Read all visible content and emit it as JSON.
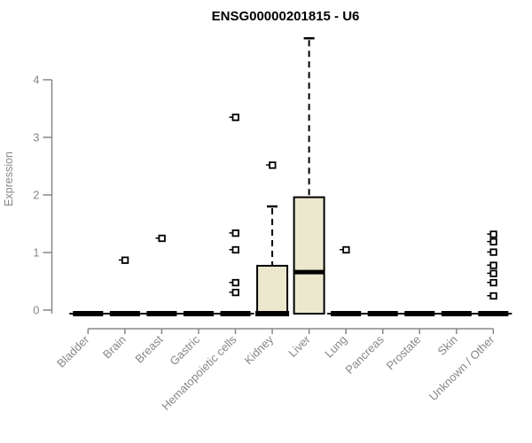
{
  "chart_data": {
    "type": "boxplot",
    "title": "ENSG00000201815 - U6",
    "ylabel": "Expression",
    "xlabel": "",
    "ylim": [
      0,
      4
    ],
    "yticks": [
      0,
      1,
      2,
      3,
      4
    ],
    "grid": false,
    "legend": false,
    "categories": [
      "Bladder",
      "Brain",
      "Breast",
      "Gastric",
      "Hematopoietic cells",
      "Kidney",
      "Liver",
      "Lung",
      "Pancreas",
      "Prostate",
      "Skin",
      "Unknown / Other"
    ],
    "series": [
      {
        "name": "Bladder",
        "q1": 0,
        "median": 0,
        "q3": 0,
        "whisker_high": 0,
        "outliers": []
      },
      {
        "name": "Brain",
        "q1": 0,
        "median": 0,
        "q3": 0,
        "whisker_high": 0,
        "outliers": [
          0.87
        ]
      },
      {
        "name": "Breast",
        "q1": 0,
        "median": 0,
        "q3": 0,
        "whisker_high": 0,
        "outliers": [
          1.25
        ]
      },
      {
        "name": "Gastric",
        "q1": 0,
        "median": 0,
        "q3": 0,
        "whisker_high": 0,
        "outliers": []
      },
      {
        "name": "Hematopoietic cells",
        "q1": 0,
        "median": 0,
        "q3": 0,
        "whisker_high": 0,
        "outliers": [
          0.31,
          0.48,
          1.05,
          1.34,
          3.35
        ]
      },
      {
        "name": "Kidney",
        "q1": 0,
        "median": 0,
        "q3": 0.77,
        "whisker_high": 1.8,
        "outliers": [
          2.52
        ]
      },
      {
        "name": "Liver",
        "q1": 0,
        "median": 0.66,
        "q3": 1.96,
        "whisker_high": 4.72,
        "outliers": []
      },
      {
        "name": "Lung",
        "q1": 0,
        "median": 0,
        "q3": 0,
        "whisker_high": 0,
        "outliers": [
          1.05
        ]
      },
      {
        "name": "Pancreas",
        "q1": 0,
        "median": 0,
        "q3": 0,
        "whisker_high": 0,
        "outliers": []
      },
      {
        "name": "Prostate",
        "q1": 0,
        "median": 0,
        "q3": 0,
        "whisker_high": 0,
        "outliers": []
      },
      {
        "name": "Skin",
        "q1": 0,
        "median": 0,
        "q3": 0,
        "whisker_high": 0,
        "outliers": []
      },
      {
        "name": "Unknown / Other",
        "q1": 0,
        "median": 0,
        "q3": 0,
        "whisker_high": 0,
        "outliers": [
          0.25,
          0.48,
          0.64,
          0.78,
          1.01,
          1.19,
          1.32
        ]
      }
    ],
    "colors": {
      "box_fill": "#ece8cd",
      "stroke": "#000000",
      "axis": "#878787",
      "tick_label": "#878787",
      "title": "#000000"
    }
  }
}
